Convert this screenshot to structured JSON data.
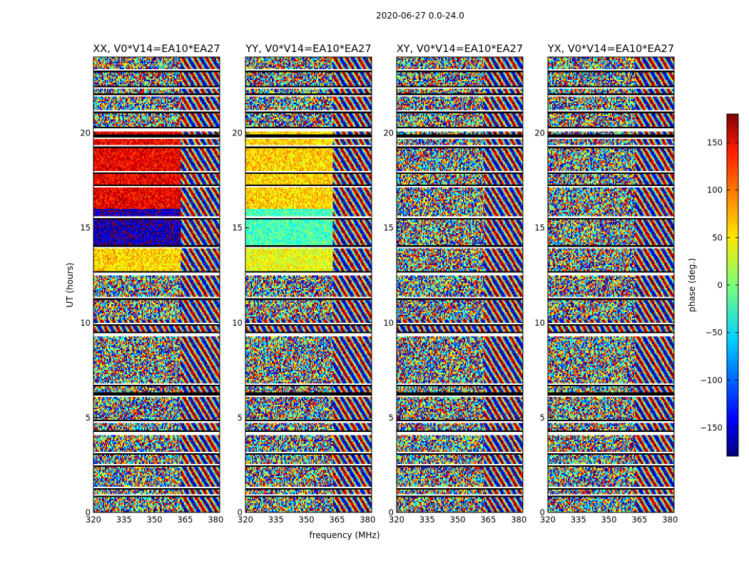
{
  "chart_data": {
    "type": "heatmap",
    "suptitle": "2020-06-27 0.0-24.0",
    "xlabel": "frequency (MHz)",
    "ylabel": "UT (hours)",
    "xlim": [
      320,
      382
    ],
    "ylim": [
      0,
      24
    ],
    "xticks": [
      "320",
      "335",
      "350",
      "365",
      "380"
    ],
    "xtick_values": [
      320,
      335,
      350,
      365,
      380
    ],
    "yticks": [
      "0",
      "5",
      "10",
      "15",
      "20"
    ],
    "ytick_values": [
      0,
      5,
      10,
      15,
      20
    ],
    "colorbar": {
      "label": "phase (deg.)",
      "range": [
        -180,
        180
      ],
      "ticks": [
        "150",
        "100",
        "50",
        "0",
        "−50",
        "−100",
        "−150"
      ],
      "tick_values": [
        150,
        100,
        50,
        0,
        -50,
        -100,
        -150
      ],
      "colormap": "jet"
    },
    "panels": [
      {
        "title": "XX, V0*V14=EA10*EA27",
        "pol": "XX"
      },
      {
        "title": "YY, V0*V14=EA10*EA27",
        "pol": "YY"
      },
      {
        "title": "XY, V0*V14=EA10*EA27",
        "pol": "XY"
      },
      {
        "title": "YX, V0*V14=EA10*EA27",
        "pol": "YX"
      }
    ],
    "flagged_ut_hours": [
      0.9,
      1.3,
      2.5,
      3.1,
      4.2,
      4.8,
      6.2,
      6.7,
      9.4,
      9.9,
      11.3,
      12.6,
      14.0,
      15.5,
      17.2,
      17.9,
      19.3,
      19.8,
      20.2,
      21.1,
      22.0,
      22.4,
      23.3
    ],
    "structure": {
      "early_hours": [
        0,
        12.6
      ],
      "coherent_hours": [
        12.6,
        20.2
      ],
      "late_hours": [
        20.2,
        24
      ],
      "band_edge_mhz": 363,
      "XX_coherent_phase_deg": [
        140,
        -160,
        60
      ],
      "YY_coherent_phase_deg": [
        60,
        -20,
        40
      ]
    }
  }
}
